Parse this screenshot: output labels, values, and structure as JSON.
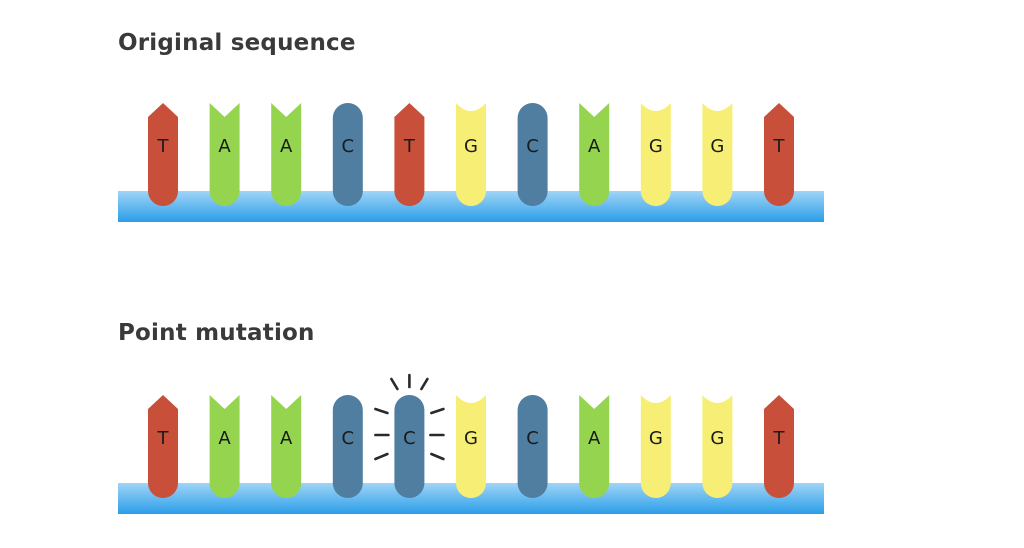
{
  "sections": [
    {
      "title": "Original sequence",
      "bases": [
        "T",
        "A",
        "A",
        "C",
        "T",
        "G",
        "C",
        "A",
        "G",
        "G",
        "T"
      ],
      "highlight_index": null
    },
    {
      "title": "Point mutation",
      "bases": [
        "T",
        "A",
        "A",
        "C",
        "C",
        "G",
        "C",
        "A",
        "G",
        "G",
        "T"
      ],
      "highlight_index": 4
    }
  ],
  "colors": {
    "T": "#c8503a",
    "A": "#94d44e",
    "C": "#4f7ea0",
    "G": "#f7ef75",
    "backbone_top": "#9fd4f7",
    "backbone_bottom": "#2b9ee8",
    "burst": "#2a2a2a"
  }
}
